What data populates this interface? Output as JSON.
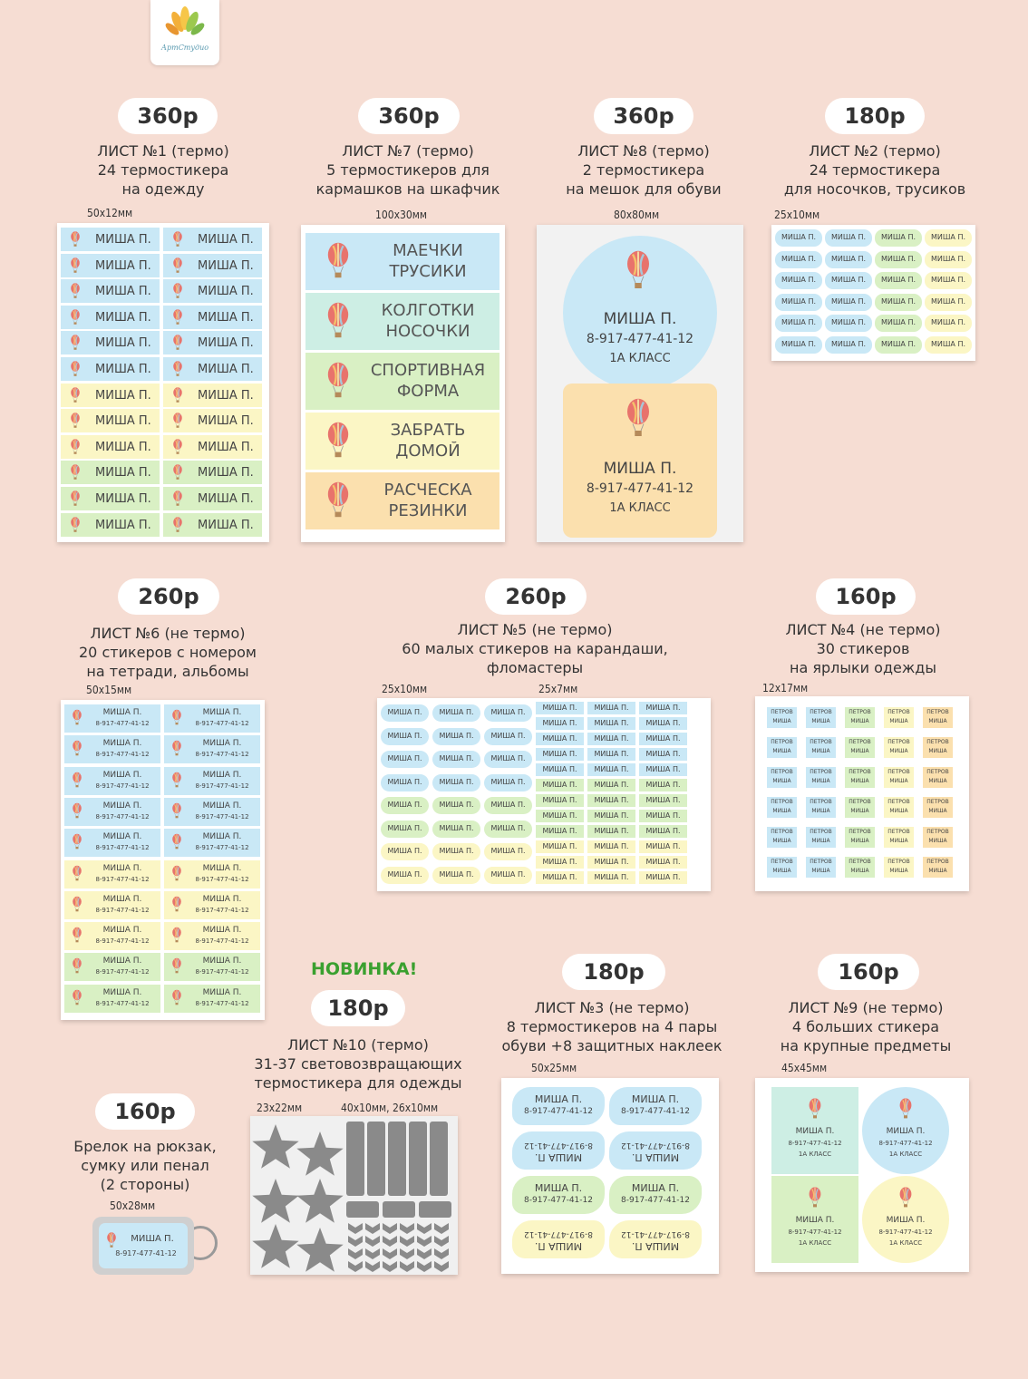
{
  "logo": {
    "text": "АртСтудио"
  },
  "colors": {
    "background": "#f6ddd3",
    "blue": "#c9e8f6",
    "mint": "#cdeee4",
    "green": "#d9f0c4",
    "yellow": "#fbf6c5",
    "orange": "#fbe0ae",
    "novinka": "#3aa02f"
  },
  "new_badge": "НОВИНКА!",
  "sticker": {
    "name": "МИША П.",
    "phone": "8-917-477-41-12",
    "class": "1А КЛАСС",
    "surname": "ПЕТРОВ",
    "first": "МИША"
  },
  "products": [
    {
      "id": "sheet1",
      "price": "360р",
      "desc": [
        "ЛИСТ №1 (термо)",
        "24 термостикера",
        "на одежду"
      ],
      "sizes": [
        "50х12мм"
      ]
    },
    {
      "id": "sheet7",
      "price": "360р",
      "desc": [
        "ЛИСТ №7 (термо)",
        "5 термостикеров для",
        "кармашков на шкафчик"
      ],
      "sizes": [
        "100х30мм"
      ],
      "labels": [
        [
          "МАЕЧКИ",
          "ТРУСИКИ"
        ],
        [
          "КОЛГОТКИ",
          "НОСОЧКИ"
        ],
        [
          "СПОРТИВНАЯ",
          "ФОРМА"
        ],
        [
          "ЗАБРАТЬ",
          "ДОМОЙ"
        ],
        [
          "РАСЧЕСКА",
          "РЕЗИНКИ"
        ]
      ]
    },
    {
      "id": "sheet8",
      "price": "360р",
      "desc": [
        "ЛИСТ №8 (термо)",
        "2 термостикера",
        "на мешок для обуви"
      ],
      "sizes": [
        "80х80мм"
      ]
    },
    {
      "id": "sheet2",
      "price": "180р",
      "desc": [
        "ЛИСТ №2 (термо)",
        "24 термостикера",
        "для носочков, трусиков"
      ],
      "sizes": [
        "25х10мм"
      ]
    },
    {
      "id": "sheet6",
      "price": "260р",
      "desc": [
        "ЛИСТ №6 (не термо)",
        "20 стикеров с номером",
        "на тетради, альбомы"
      ],
      "sizes": [
        "50х15мм"
      ]
    },
    {
      "id": "sheet5",
      "price": "260р",
      "desc": [
        "ЛИСТ №5 (не термо)",
        "60 малых стикеров на карандаши,",
        "фломастеры"
      ],
      "sizes": [
        "25х10мм",
        "25х7мм"
      ]
    },
    {
      "id": "sheet4",
      "price": "160р",
      "desc": [
        "ЛИСТ №4 (не термо)",
        "30 стикеров",
        "на ярлыки одежды"
      ],
      "sizes": [
        "12х17мм"
      ]
    },
    {
      "id": "sheet10",
      "price": "180р",
      "desc": [
        "ЛИСТ №10 (термо)",
        "31-37 световозвращающих",
        "термостикера для одежды"
      ],
      "sizes": [
        "23х22мм",
        "40х10мм, 26х10мм"
      ]
    },
    {
      "id": "sheet3",
      "price": "180р",
      "desc": [
        "ЛИСТ №3 (не термо)",
        "8 термостикеров на 4 пары",
        "обуви +8 защитных наклеек"
      ],
      "sizes": [
        "50х25мм"
      ]
    },
    {
      "id": "sheet9",
      "price": "160р",
      "desc": [
        "ЛИСТ №9 (не термо)",
        "4 больших стикера",
        "на крупные предметы"
      ],
      "sizes": [
        "45х45мм"
      ]
    },
    {
      "id": "keychain",
      "price": "160р",
      "desc": [
        "Брелок на рюкзак,",
        "сумку или пенал",
        "(2 стороны)"
      ],
      "sizes": [
        "50х28мм"
      ]
    }
  ]
}
